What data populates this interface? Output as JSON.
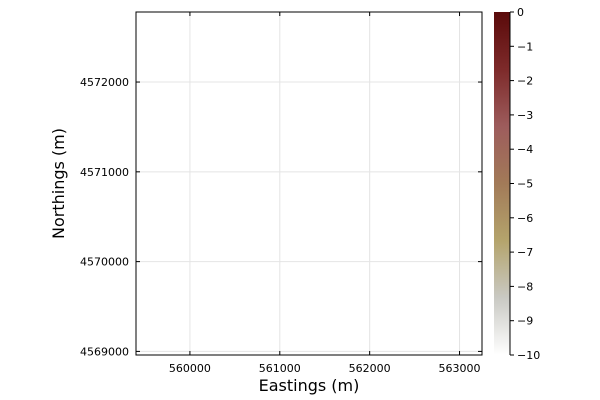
{
  "chart_data": {
    "type": "heatmap",
    "title": "",
    "xlabel": "Eastings (m)",
    "ylabel": "Northings (m)",
    "xlim": [
      559400,
      563250
    ],
    "ylim": [
      4568960,
      4572780
    ],
    "x_ticks": [
      560000,
      561000,
      562000,
      563000
    ],
    "x_tick_labels": [
      "560000",
      "561000",
      "562000",
      "563000"
    ],
    "y_ticks": [
      4569000,
      4570000,
      4571000,
      4572000
    ],
    "y_tick_labels": [
      "4569000",
      "4570000",
      "4571000",
      "4572000"
    ],
    "grid": true,
    "values": [],
    "colorbar": {
      "clim": [
        -10,
        0
      ],
      "ticks": [
        0,
        -1,
        -2,
        -3,
        -4,
        -5,
        -6,
        -7,
        -8,
        -9,
        -10
      ],
      "tick_labels": [
        "0",
        "−1",
        "−2",
        "−3",
        "−4",
        "−5",
        "−6",
        "−7",
        "−8",
        "−9",
        "−10"
      ],
      "colors": [
        "#ffffff",
        "#c9c9c3",
        "#b4a46c",
        "#a27a58",
        "#9d5c5c",
        "#7d2a2a",
        "#5a0a0a"
      ]
    }
  }
}
